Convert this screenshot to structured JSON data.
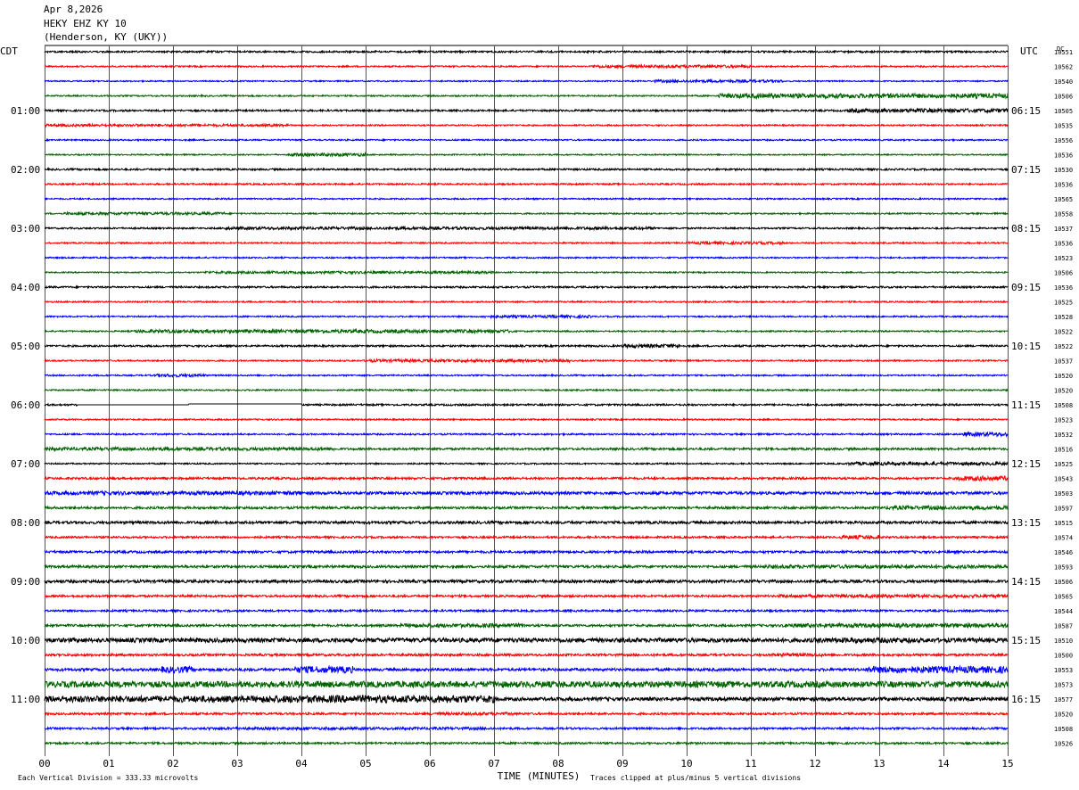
{
  "header": {
    "date": "Apr 8,2026",
    "station": "HEKY EHZ KY 10",
    "location": "(Henderson, KY (UKY))"
  },
  "left_axis_title": "CDT",
  "right_axis_title": "UTC",
  "dc_title": "DC",
  "footer": {
    "scale_note": "Each Vertical Division =  333.33 microvolts",
    "clip_note": "Traces clipped at plus/minus 5 vertical divisions"
  },
  "colors": {
    "cycle": [
      "#000000",
      "#ff0000",
      "#0000ff",
      "#006400"
    ],
    "grid": "#000000"
  },
  "chart_data": {
    "type": "line",
    "subtype": "helicorder",
    "xlabel": "TIME (MINUTES)",
    "xlim": [
      0,
      15
    ],
    "x_ticks": [
      "00",
      "01",
      "02",
      "03",
      "04",
      "05",
      "06",
      "07",
      "08",
      "09",
      "10",
      "11",
      "12",
      "13",
      "14",
      "15"
    ],
    "rows_per_hour": 4,
    "left_time_labels": [
      "01:00",
      "02:00",
      "03:00",
      "04:00",
      "05:00",
      "06:00",
      "07:00",
      "08:00",
      "09:00",
      "10:00",
      "11:00"
    ],
    "right_time_labels": [
      "06:15",
      "07:15",
      "08:15",
      "09:15",
      "10:15",
      "11:15",
      "12:15",
      "13:15",
      "14:15",
      "15:15",
      "16:15"
    ],
    "dc_values": [
      "10551",
      "10562",
      "10540",
      "10506",
      "10505",
      "10535",
      "10556",
      "10536",
      "10530",
      "10536",
      "10565",
      "10558",
      "10537",
      "10536",
      "10523",
      "10506",
      "10536",
      "10525",
      "10528",
      "10522",
      "10522",
      "10537",
      "10520",
      "10520",
      "10508",
      "10523",
      "10532",
      "10516",
      "10525",
      "10543",
      "10503",
      "10597",
      "10515",
      "10574",
      "10546",
      "10593",
      "10506",
      "10565",
      "10544",
      "10587",
      "10510",
      "10500",
      "10553",
      "10573",
      "10577",
      "10520",
      "10508",
      "10526"
    ],
    "activity": [
      [
        [
          0,
          15,
          1.0
        ]
      ],
      [
        [
          0,
          15,
          0.8
        ],
        [
          8.5,
          11,
          1.6
        ]
      ],
      [
        [
          0,
          15,
          0.7
        ],
        [
          9.5,
          11.5,
          1.5
        ]
      ],
      [
        [
          0,
          15,
          0.8
        ],
        [
          10.5,
          15,
          2.6
        ]
      ],
      [
        [
          0,
          15,
          1.0
        ],
        [
          12.5,
          15,
          2.2
        ]
      ],
      [
        [
          0,
          3.8,
          1.4
        ],
        [
          3.8,
          15,
          0.8
        ]
      ],
      [
        [
          0,
          15,
          0.8
        ]
      ],
      [
        [
          0,
          15,
          0.7
        ],
        [
          3.8,
          5,
          1.8
        ]
      ],
      [
        [
          0,
          15,
          1.0
        ]
      ],
      [
        [
          0,
          15,
          0.9
        ]
      ],
      [
        [
          0,
          15,
          0.8
        ]
      ],
      [
        [
          0,
          15,
          0.8
        ],
        [
          0.3,
          2.8,
          1.5
        ]
      ],
      [
        [
          0,
          15,
          0.9
        ],
        [
          2.8,
          9.5,
          1.6
        ]
      ],
      [
        [
          0,
          15,
          0.8
        ],
        [
          10,
          11.5,
          1.5
        ]
      ],
      [
        [
          0,
          15,
          0.8
        ]
      ],
      [
        [
          0,
          15,
          0.7
        ],
        [
          2.5,
          7,
          1.4
        ]
      ],
      [
        [
          0,
          15,
          1.0
        ]
      ],
      [
        [
          0,
          15,
          0.8
        ]
      ],
      [
        [
          0,
          15,
          0.8
        ],
        [
          6.8,
          8.5,
          1.5
        ]
      ],
      [
        [
          0,
          15,
          0.8
        ],
        [
          1.4,
          7.3,
          1.9
        ]
      ],
      [
        [
          0,
          15,
          1.0
        ],
        [
          9,
          9.9,
          2.0
        ]
      ],
      [
        [
          0,
          15,
          0.8
        ],
        [
          5,
          8.2,
          1.6
        ]
      ],
      [
        [
          0,
          15,
          0.8
        ],
        [
          1.7,
          2.5,
          1.7
        ]
      ],
      [
        [
          0,
          15,
          0.8
        ]
      ],
      [
        [
          0,
          15,
          1.0
        ]
      ],
      [
        [
          0,
          15,
          0.8
        ]
      ],
      [
        [
          0,
          15,
          0.9
        ],
        [
          14.3,
          15,
          2.2
        ]
      ],
      [
        [
          0,
          15,
          1.2
        ],
        [
          0,
          4.5,
          1.8
        ]
      ],
      [
        [
          0,
          15,
          0.8
        ],
        [
          12.5,
          15,
          1.8
        ]
      ],
      [
        [
          0,
          15,
          1.2
        ],
        [
          14.2,
          15,
          2.6
        ]
      ],
      [
        [
          0,
          15,
          1.6
        ],
        [
          0,
          4,
          2.1
        ]
      ],
      [
        [
          0,
          15,
          1.3
        ],
        [
          13.1,
          15,
          2.2
        ]
      ],
      [
        [
          0,
          15,
          1.5
        ]
      ],
      [
        [
          0,
          15,
          1.1
        ],
        [
          12.4,
          13,
          2.2
        ]
      ],
      [
        [
          0,
          15,
          1.3
        ]
      ],
      [
        [
          0,
          15,
          1.4
        ],
        [
          11.2,
          15,
          2.0
        ]
      ],
      [
        [
          0,
          15,
          1.6
        ]
      ],
      [
        [
          0,
          15,
          1.2
        ],
        [
          11.4,
          15,
          1.8
        ]
      ],
      [
        [
          0,
          15,
          1.1
        ]
      ],
      [
        [
          0,
          15,
          1.3
        ],
        [
          5.5,
          7.5,
          2.2
        ],
        [
          11.5,
          15,
          2.3
        ]
      ],
      [
        [
          0,
          15,
          2.4
        ],
        [
          12,
          13.5,
          3.0
        ]
      ],
      [
        [
          0,
          15,
          1.3
        ],
        [
          11.3,
          12.1,
          1.9
        ]
      ],
      [
        [
          0,
          15,
          1.5
        ],
        [
          1.8,
          2.3,
          3.6
        ],
        [
          3.9,
          4.8,
          3.8
        ],
        [
          12.8,
          15,
          3.8
        ]
      ],
      [
        [
          0,
          15,
          3.4
        ]
      ],
      [
        [
          0,
          15,
          2.0
        ],
        [
          0,
          7,
          3.6
        ],
        [
          3.4,
          7,
          4.2
        ]
      ],
      [
        [
          0,
          15,
          1.2
        ],
        [
          6,
          7.3,
          1.7
        ]
      ],
      [
        [
          0,
          15,
          1.1
        ],
        [
          2.5,
          7,
          1.5
        ]
      ],
      [
        [
          0,
          15,
          1.1
        ]
      ]
    ],
    "gaps": [
      {
        "row": 24,
        "x": [
          0.5,
          4.0
        ]
      }
    ]
  }
}
